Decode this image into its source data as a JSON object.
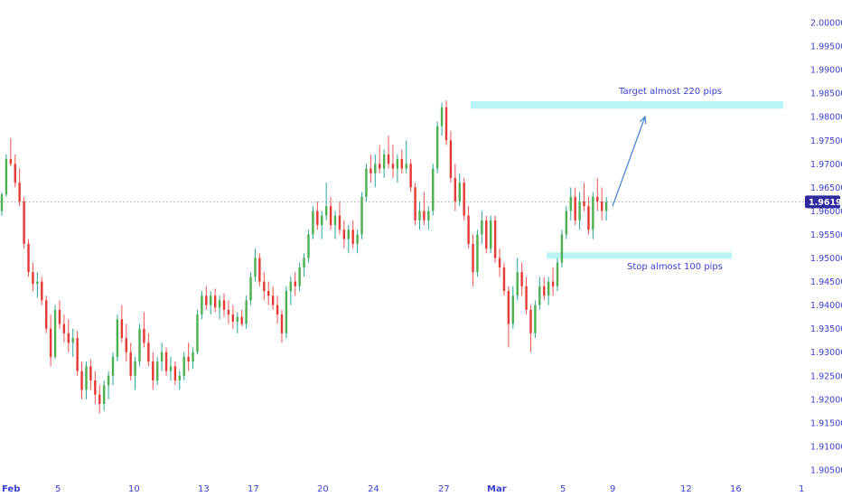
{
  "chart_data": {
    "type": "candlestick",
    "y_ticks": [
      "2.00000",
      "1.99500",
      "1.99000",
      "1.98500",
      "1.98000",
      "1.97500",
      "1.97000",
      "1.96500",
      "1.96000",
      "1.95500",
      "1.95000",
      "1.94500",
      "1.94000",
      "1.93500",
      "1.93000",
      "1.92500",
      "1.92000",
      "1.91500",
      "1.91000",
      "1.90500"
    ],
    "y_tick_values": [
      2.0,
      1.995,
      1.99,
      1.985,
      1.98,
      1.975,
      1.97,
      1.965,
      1.96,
      1.955,
      1.95,
      1.945,
      1.94,
      1.935,
      1.93,
      1.925,
      1.92,
      1.915,
      1.91,
      1.905
    ],
    "ylim": [
      1.903,
      2.0015
    ],
    "x_ticks": [
      "Feb",
      "5",
      "10",
      "13",
      "17",
      "20",
      "24",
      "27",
      "Mar",
      "5",
      "9",
      "12",
      "16",
      "1"
    ],
    "x_tick_bold": [
      "Feb",
      "Mar"
    ],
    "current_price": "1.96194",
    "current_price_value": 1.96194,
    "colors": {
      "up": "#26a69a",
      "down": "#ef5350",
      "up_body": "#4caf50",
      "down_body": "#e53935",
      "zone": "#b9f4f7",
      "arrow": "#3f7fd1",
      "price_tag": "#2f2b9e",
      "axis_text": "#3a3fd1"
    },
    "zones": [
      {
        "label": "Target almost 220 pips",
        "y_top": 1.9833,
        "y_bottom": 1.9817
      },
      {
        "label": "Stop almost 100 pips",
        "y_top": 1.9512,
        "y_bottom": 1.9504
      }
    ],
    "arrow": {
      "from_price": 1.961,
      "to_price": 1.98
    },
    "candles": [
      [
        1.96,
        1.964,
        1.959,
        1.9635
      ],
      [
        1.9635,
        1.972,
        1.963,
        1.971
      ],
      [
        1.971,
        1.9755,
        1.9695,
        1.97
      ],
      [
        1.97,
        1.972,
        1.965,
        1.966
      ],
      [
        1.966,
        1.969,
        1.961,
        1.962
      ],
      [
        1.962,
        1.963,
        1.952,
        1.953
      ],
      [
        1.953,
        1.954,
        1.946,
        1.947
      ],
      [
        1.947,
        1.949,
        1.943,
        1.9445
      ],
      [
        1.9445,
        1.947,
        1.9415,
        1.945
      ],
      [
        1.945,
        1.946,
        1.94,
        1.941
      ],
      [
        1.941,
        1.942,
        1.934,
        1.935
      ],
      [
        1.935,
        1.938,
        1.927,
        1.929
      ],
      [
        1.929,
        1.94,
        1.9285,
        1.939
      ],
      [
        1.939,
        1.941,
        1.935,
        1.936
      ],
      [
        1.936,
        1.938,
        1.932,
        1.934
      ],
      [
        1.934,
        1.937,
        1.93,
        1.932
      ],
      [
        1.932,
        1.935,
        1.929,
        1.933
      ],
      [
        1.933,
        1.9345,
        1.925,
        1.926
      ],
      [
        1.926,
        1.928,
        1.92,
        1.922
      ],
      [
        1.922,
        1.928,
        1.92,
        1.927
      ],
      [
        1.927,
        1.9285,
        1.922,
        1.924
      ],
      [
        1.924,
        1.926,
        1.919,
        1.921
      ],
      [
        1.921,
        1.923,
        1.917,
        1.919
      ],
      [
        1.919,
        1.924,
        1.9175,
        1.923
      ],
      [
        1.923,
        1.926,
        1.92,
        1.925
      ],
      [
        1.925,
        1.93,
        1.923,
        1.929
      ],
      [
        1.929,
        1.938,
        1.928,
        1.937
      ],
      [
        1.937,
        1.94,
        1.932,
        1.933
      ],
      [
        1.933,
        1.936,
        1.928,
        1.93
      ],
      [
        1.93,
        1.932,
        1.924,
        1.925
      ],
      [
        1.925,
        1.929,
        1.922,
        1.928
      ],
      [
        1.928,
        1.936,
        1.927,
        1.935
      ],
      [
        1.935,
        1.9385,
        1.931,
        1.932
      ],
      [
        1.932,
        1.934,
        1.927,
        1.928
      ],
      [
        1.928,
        1.93,
        1.922,
        1.924
      ],
      [
        1.924,
        1.929,
        1.923,
        1.928
      ],
      [
        1.928,
        1.932,
        1.926,
        1.93
      ],
      [
        1.93,
        1.931,
        1.925,
        1.926
      ],
      [
        1.926,
        1.929,
        1.924,
        1.927
      ],
      [
        1.927,
        1.928,
        1.923,
        1.924
      ],
      [
        1.924,
        1.926,
        1.922,
        1.925
      ],
      [
        1.925,
        1.93,
        1.924,
        1.929
      ],
      [
        1.929,
        1.932,
        1.926,
        1.928
      ],
      [
        1.928,
        1.931,
        1.9265,
        1.93
      ],
      [
        1.93,
        1.939,
        1.9295,
        1.938
      ],
      [
        1.938,
        1.943,
        1.937,
        1.942
      ],
      [
        1.942,
        1.944,
        1.939,
        1.94
      ],
      [
        1.94,
        1.943,
        1.938,
        1.942
      ],
      [
        1.942,
        1.9435,
        1.9385,
        1.9395
      ],
      [
        1.9395,
        1.942,
        1.937,
        1.941
      ],
      [
        1.941,
        1.9425,
        1.9375,
        1.939
      ],
      [
        1.939,
        1.941,
        1.936,
        1.938
      ],
      [
        1.938,
        1.94,
        1.935,
        1.9365
      ],
      [
        1.9365,
        1.9385,
        1.934,
        1.9375
      ],
      [
        1.9375,
        1.939,
        1.9355,
        1.936
      ],
      [
        1.936,
        1.942,
        1.935,
        1.941
      ],
      [
        1.941,
        1.947,
        1.94,
        1.946
      ],
      [
        1.946,
        1.952,
        1.945,
        1.95
      ],
      [
        1.95,
        1.951,
        1.944,
        1.945
      ],
      [
        1.945,
        1.947,
        1.941,
        1.943
      ],
      [
        1.943,
        1.945,
        1.94,
        1.942
      ],
      [
        1.942,
        1.944,
        1.939,
        1.94
      ],
      [
        1.94,
        1.942,
        1.936,
        1.938
      ],
      [
        1.938,
        1.939,
        1.932,
        1.934
      ],
      [
        1.934,
        1.944,
        1.933,
        1.943
      ],
      [
        1.943,
        1.946,
        1.94,
        1.945
      ],
      [
        1.945,
        1.947,
        1.942,
        1.944
      ],
      [
        1.944,
        1.949,
        1.943,
        1.948
      ],
      [
        1.948,
        1.951,
        1.946,
        1.95
      ],
      [
        1.95,
        1.956,
        1.949,
        1.955
      ],
      [
        1.955,
        1.961,
        1.954,
        1.96
      ],
      [
        1.96,
        1.962,
        1.956,
        1.957
      ],
      [
        1.957,
        1.96,
        1.954,
        1.959
      ],
      [
        1.959,
        1.966,
        1.958,
        1.961
      ],
      [
        1.961,
        1.963,
        1.956,
        1.957
      ],
      [
        1.957,
        1.96,
        1.954,
        1.959
      ],
      [
        1.959,
        1.962,
        1.955,
        1.956
      ],
      [
        1.956,
        1.958,
        1.952,
        1.954
      ],
      [
        1.954,
        1.957,
        1.951,
        1.956
      ],
      [
        1.956,
        1.958,
        1.952,
        1.953
      ],
      [
        1.953,
        1.956,
        1.951,
        1.955
      ],
      [
        1.955,
        1.964,
        1.954,
        1.963
      ],
      [
        1.963,
        1.97,
        1.962,
        1.969
      ],
      [
        1.969,
        1.972,
        1.966,
        1.968
      ],
      [
        1.968,
        1.972,
        1.965,
        1.97
      ],
      [
        1.97,
        1.974,
        1.968,
        1.969
      ],
      [
        1.969,
        1.973,
        1.967,
        1.972
      ],
      [
        1.972,
        1.976,
        1.969,
        1.97
      ],
      [
        1.97,
        1.974,
        1.967,
        1.969
      ],
      [
        1.969,
        1.972,
        1.966,
        1.971
      ],
      [
        1.971,
        1.973,
        1.968,
        1.969
      ],
      [
        1.969,
        1.975,
        1.968,
        1.97
      ],
      [
        1.97,
        1.971,
        1.964,
        1.965
      ],
      [
        1.965,
        1.966,
        1.957,
        1.958
      ],
      [
        1.958,
        1.962,
        1.956,
        1.96
      ],
      [
        1.96,
        1.964,
        1.957,
        1.958
      ],
      [
        1.958,
        1.961,
        1.956,
        1.96
      ],
      [
        1.96,
        1.97,
        1.959,
        1.969
      ],
      [
        1.969,
        1.979,
        1.968,
        1.978
      ],
      [
        1.978,
        1.983,
        1.976,
        1.982
      ],
      [
        1.982,
        1.9835,
        1.974,
        1.975
      ],
      [
        1.975,
        1.977,
        1.966,
        1.967
      ],
      [
        1.967,
        1.97,
        1.96,
        1.962
      ],
      [
        1.962,
        1.968,
        1.961,
        1.966
      ],
      [
        1.966,
        1.967,
        1.958,
        1.959
      ],
      [
        1.959,
        1.961,
        1.952,
        1.953
      ],
      [
        1.953,
        1.955,
        1.944,
        1.947
      ],
      [
        1.947,
        1.956,
        1.946,
        1.955
      ],
      [
        1.955,
        1.96,
        1.953,
        1.958
      ],
      [
        1.958,
        1.959,
        1.951,
        1.952
      ],
      [
        1.952,
        1.959,
        1.951,
        1.958
      ],
      [
        1.958,
        1.959,
        1.949,
        1.95
      ],
      [
        1.95,
        1.952,
        1.946,
        1.948
      ],
      [
        1.948,
        1.949,
        1.942,
        1.943
      ],
      [
        1.943,
        1.944,
        1.931,
        1.936
      ],
      [
        1.936,
        1.944,
        1.935,
        1.942
      ],
      [
        1.942,
        1.95,
        1.941,
        1.947
      ],
      [
        1.947,
        1.949,
        1.942,
        1.944
      ],
      [
        1.944,
        1.946,
        1.938,
        1.939
      ],
      [
        1.939,
        1.94,
        1.93,
        1.934
      ],
      [
        1.934,
        1.941,
        1.933,
        1.94
      ],
      [
        1.94,
        1.946,
        1.939,
        1.944
      ],
      [
        1.944,
        1.946,
        1.941,
        1.942
      ],
      [
        1.942,
        1.946,
        1.94,
        1.945
      ],
      [
        1.945,
        1.948,
        1.942,
        1.944
      ],
      [
        1.944,
        1.95,
        1.943,
        1.949
      ],
      [
        1.949,
        1.956,
        1.948,
        1.955
      ],
      [
        1.955,
        1.961,
        1.954,
        1.96
      ],
      [
        1.96,
        1.965,
        1.958,
        1.963
      ],
      [
        1.963,
        1.965,
        1.957,
        1.958
      ],
      [
        1.958,
        1.964,
        1.956,
        1.962
      ],
      [
        1.962,
        1.966,
        1.96,
        1.961
      ],
      [
        1.961,
        1.963,
        1.955,
        1.956
      ],
      [
        1.956,
        1.964,
        1.954,
        1.963
      ],
      [
        1.963,
        1.967,
        1.96,
        1.962
      ],
      [
        1.962,
        1.965,
        1.958,
        1.96
      ],
      [
        1.96,
        1.963,
        1.958,
        1.9619
      ]
    ]
  }
}
